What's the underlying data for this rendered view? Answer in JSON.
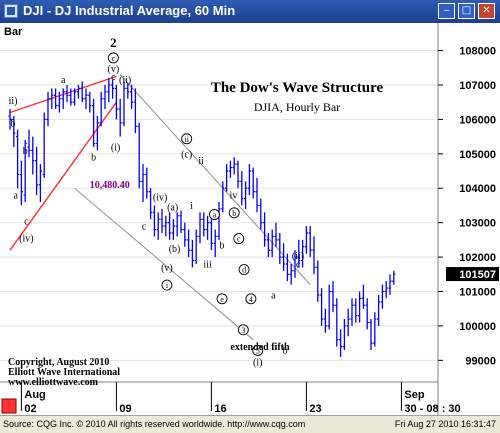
{
  "window": {
    "title": "DJI - DJ Industrial Average, 60 Min",
    "min_glyph": "‒",
    "max_glyph": "□",
    "close_glyph": "✕"
  },
  "status": {
    "copyright": "Source: CQG Inc. © 2010 All rights reserved worldwide.  http://www.cqg.com",
    "datetime": "Fri Aug 27 2010 16:31:47"
  },
  "colors": {
    "bar": "#0000ff",
    "wedge": "#ff3030",
    "channel": "#909090",
    "last_price_bg": "#000000",
    "annotation_value": "#800080"
  },
  "chart_data": {
    "type": "ohlc-bar",
    "symbol": "DJI",
    "interval": "60 Min",
    "corner_label": "Bar",
    "title": "The Dow's Wave Structure",
    "subtitle": "DJIA, Hourly Bar",
    "price_axis": {
      "range": [
        98400,
        108800
      ],
      "ticks": [
        99000,
        100000,
        101000,
        102000,
        103000,
        104000,
        105000,
        106000,
        107000,
        108000
      ],
      "labels": [
        "99000",
        "100000",
        "101000",
        "102000",
        "103000",
        "104000",
        "105000",
        "106000",
        "107000",
        "108000"
      ],
      "last_price": 101507,
      "last_price_label": "101507"
    },
    "time_axis": {
      "months": [
        {
          "label": "Aug",
          "x": 3
        },
        {
          "label": "Sep",
          "x": 103
        }
      ],
      "days": [
        {
          "label": "02",
          "x": 3
        },
        {
          "label": "09",
          "x": 28
        },
        {
          "label": "16",
          "x": 53
        },
        {
          "label": "23",
          "x": 78
        },
        {
          "label": "30 - 08 : 30",
          "x": 103
        }
      ]
    },
    "values": [
      [
        0,
        106100,
        106300,
        105700,
        106000
      ],
      [
        1,
        106000,
        106100,
        105200,
        105600
      ],
      [
        2,
        105500,
        105700,
        104000,
        104400
      ],
      [
        3,
        104400,
        104800,
        103500,
        103900
      ],
      [
        4,
        103800,
        105400,
        103600,
        105300
      ],
      [
        5,
        105200,
        105700,
        104900,
        105100
      ],
      [
        6,
        105100,
        105500,
        104400,
        104800
      ],
      [
        7,
        104800,
        105200,
        103800,
        104100
      ],
      [
        8,
        104100,
        104700,
        103600,
        104500
      ],
      [
        9,
        104400,
        106200,
        104300,
        106000
      ],
      [
        10,
        106000,
        106800,
        105800,
        106600
      ],
      [
        11,
        106600,
        106900,
        106300,
        106700
      ],
      [
        12,
        106700,
        106900,
        106300,
        106400
      ],
      [
        13,
        106400,
        106800,
        106200,
        106600
      ],
      [
        14,
        106600,
        106900,
        106300,
        106800
      ],
      [
        15,
        106800,
        107000,
        106500,
        106700
      ],
      [
        16,
        106700,
        106900,
        106400,
        106500
      ],
      [
        17,
        106500,
        106900,
        106400,
        106800
      ],
      [
        18,
        106800,
        107000,
        106600,
        106900
      ],
      [
        19,
        106900,
        107100,
        106500,
        106600
      ],
      [
        20,
        106600,
        106900,
        106300,
        106700
      ],
      [
        21,
        106700,
        106800,
        106200,
        106400
      ],
      [
        22,
        106400,
        106600,
        105200,
        105300
      ],
      [
        23,
        105300,
        106100,
        105100,
        105900
      ],
      [
        24,
        105900,
        106800,
        105800,
        106600
      ],
      [
        25,
        106600,
        107000,
        106300,
        106800
      ],
      [
        26,
        106800,
        107200,
        106500,
        107000
      ],
      [
        27,
        107000,
        107150,
        106600,
        106900
      ],
      [
        28,
        106900,
        107000,
        106000,
        106300
      ],
      [
        29,
        106300,
        106600,
        105500,
        105900
      ],
      [
        30,
        105900,
        107100,
        105800,
        106900
      ],
      [
        31,
        106900,
        107050,
        106600,
        106800
      ],
      [
        32,
        106800,
        107000,
        106300,
        106500
      ],
      [
        33,
        106500,
        106900,
        105600,
        105800
      ],
      [
        34,
        105800,
        105900,
        104000,
        104200
      ],
      [
        35,
        104200,
        104700,
        103600,
        104400
      ],
      [
        36,
        104400,
        104600,
        103700,
        103900
      ],
      [
        37,
        103900,
        104000,
        103100,
        103300
      ],
      [
        38,
        103300,
        103500,
        102600,
        102800
      ],
      [
        39,
        102800,
        103300,
        102500,
        103100
      ],
      [
        40,
        103100,
        103400,
        102700,
        102900
      ],
      [
        41,
        102900,
        103200,
        102600,
        103000
      ],
      [
        42,
        103000,
        103300,
        102500,
        102700
      ],
      [
        43,
        102700,
        103100,
        102500,
        102900
      ],
      [
        44,
        102900,
        103300,
        102600,
        103200
      ],
      [
        45,
        103200,
        103350,
        102700,
        102800
      ],
      [
        46,
        102800,
        103000,
        102300,
        102500
      ],
      [
        47,
        102500,
        102800,
        102000,
        102200
      ],
      [
        48,
        102200,
        102500,
        101700,
        101900
      ],
      [
        49,
        101900,
        102800,
        101800,
        102600
      ],
      [
        50,
        102600,
        103300,
        102400,
        103100
      ],
      [
        51,
        103100,
        103300,
        102600,
        102800
      ],
      [
        52,
        102800,
        103200,
        102500,
        103000
      ],
      [
        53,
        103000,
        103100,
        102200,
        102400
      ],
      [
        54,
        102400,
        102800,
        102000,
        102600
      ],
      [
        55,
        102600,
        103600,
        102500,
        103400
      ],
      [
        56,
        103400,
        104200,
        103300,
        104000
      ],
      [
        57,
        104000,
        104700,
        103900,
        104500
      ],
      [
        58,
        104500,
        104800,
        104300,
        104600
      ],
      [
        59,
        104600,
        104900,
        104400,
        104700
      ],
      [
        60,
        104700,
        104800,
        104000,
        104200
      ],
      [
        61,
        104200,
        104500,
        103500,
        103700
      ],
      [
        62,
        103700,
        104200,
        103400,
        104000
      ],
      [
        63,
        104000,
        104700,
        103800,
        104500
      ],
      [
        64,
        104500,
        104600,
        103700,
        103900
      ],
      [
        65,
        103900,
        104300,
        103300,
        103500
      ],
      [
        66,
        103500,
        103700,
        102800,
        103000
      ],
      [
        67,
        103000,
        103300,
        102300,
        102500
      ],
      [
        68,
        102500,
        102700,
        102000,
        102200
      ],
      [
        69,
        102200,
        102800,
        102000,
        102600
      ],
      [
        70,
        102600,
        103000,
        102300,
        102500
      ],
      [
        71,
        102500,
        102700,
        101800,
        102000
      ],
      [
        72,
        102000,
        102400,
        101600,
        101800
      ],
      [
        73,
        101800,
        102100,
        101300,
        101500
      ],
      [
        74,
        101500,
        101800,
        101200,
        101600
      ],
      [
        75,
        101600,
        102200,
        101400,
        102000
      ],
      [
        76,
        102000,
        102500,
        101700,
        101900
      ],
      [
        77,
        101900,
        102500,
        101700,
        102300
      ],
      [
        78,
        102300,
        102900,
        102100,
        102700
      ],
      [
        79,
        102700,
        102900,
        102000,
        102200
      ],
      [
        80,
        102200,
        102600,
        101500,
        101700
      ],
      [
        81,
        101700,
        101900,
        100700,
        100900
      ],
      [
        82,
        100900,
        101100,
        100000,
        100200
      ],
      [
        83,
        100200,
        100500,
        99800,
        100000
      ],
      [
        84,
        100000,
        101200,
        99900,
        101000
      ],
      [
        85,
        101000,
        101300,
        100400,
        100600
      ],
      [
        86,
        100600,
        100800,
        99400,
        99600
      ],
      [
        87,
        99600,
        99900,
        99100,
        99400
      ],
      [
        88,
        99400,
        100200,
        99300,
        100000
      ],
      [
        89,
        100000,
        100500,
        99700,
        100200
      ],
      [
        90,
        100200,
        100800,
        100000,
        100600
      ],
      [
        91,
        100600,
        100800,
        100100,
        100300
      ],
      [
        92,
        100300,
        101000,
        100100,
        100800
      ],
      [
        93,
        100800,
        101200,
        100500,
        100600
      ],
      [
        94,
        100600,
        100800,
        99900,
        100100
      ],
      [
        95,
        100100,
        100200,
        99300,
        99500
      ],
      [
        96,
        99500,
        100400,
        99400,
        100200
      ],
      [
        97,
        100200,
        100900,
        100000,
        100700
      ],
      [
        98,
        100700,
        101200,
        100500,
        101000
      ],
      [
        99,
        101000,
        101300,
        100800,
        101100
      ],
      [
        100,
        101100,
        101500,
        100900,
        101300
      ],
      [
        101,
        101300,
        101600,
        101200,
        101507
      ]
    ],
    "wave_labels": [
      {
        "text": "2",
        "x": 27.2,
        "y": 108100,
        "style": "plain-big"
      },
      {
        "text": "c",
        "x": 27.2,
        "y": 107700,
        "style": "circled"
      },
      {
        "text": "(v)",
        "x": 27.2,
        "y": 107380,
        "style": "plain"
      },
      {
        "text": "c",
        "x": 27.2,
        "y": 107150,
        "style": "plain"
      },
      {
        "text": "(ii)",
        "x": 30.3,
        "y": 107050,
        "style": "plain"
      },
      {
        "text": "a",
        "x": 14,
        "y": 107050,
        "style": "plain"
      },
      {
        "text": "ii)",
        "x": 0.8,
        "y": 106450,
        "style": "plain"
      },
      {
        "text": "b",
        "x": 0.8,
        "y": 105800,
        "style": "plain"
      },
      {
        "text": "b",
        "x": 4,
        "y": 105000,
        "style": "plain"
      },
      {
        "text": "a",
        "x": 1.5,
        "y": 103700,
        "style": "plain"
      },
      {
        "text": "c",
        "x": 4.3,
        "y": 102950,
        "style": "plain"
      },
      {
        "text": "(iv)",
        "x": 4.3,
        "y": 102450,
        "style": "plain"
      },
      {
        "text": "b",
        "x": 22,
        "y": 104800,
        "style": "plain"
      },
      {
        "text": "(i)",
        "x": 27.8,
        "y": 105100,
        "style": "plain"
      },
      {
        "text": "10,480.40",
        "x": 21,
        "y": 104000,
        "style": "value"
      },
      {
        "text": "(iv)",
        "x": 39.5,
        "y": 103650,
        "style": "plain"
      },
      {
        "text": "(a)",
        "x": 42.8,
        "y": 103350,
        "style": "plain"
      },
      {
        "text": "c",
        "x": 35.3,
        "y": 102800,
        "style": "plain"
      },
      {
        "text": "(b)",
        "x": 43.3,
        "y": 102150,
        "style": "plain"
      },
      {
        "text": "(v)",
        "x": 41.3,
        "y": 101600,
        "style": "plain"
      },
      {
        "text": "i",
        "x": 41.3,
        "y": 101100,
        "style": "circled"
      },
      {
        "text": "ii",
        "x": 46.5,
        "y": 105350,
        "style": "circled"
      },
      {
        "text": "(c)",
        "x": 46.5,
        "y": 104900,
        "style": "plain"
      },
      {
        "text": "ii",
        "x": 50.3,
        "y": 104700,
        "style": "plain"
      },
      {
        "text": "i",
        "x": 47.8,
        "y": 103400,
        "style": "plain"
      },
      {
        "text": "a",
        "x": 53.8,
        "y": 103150,
        "style": "circled"
      },
      {
        "text": "b",
        "x": 55.8,
        "y": 102250,
        "style": "plain"
      },
      {
        "text": "iv",
        "x": 58.8,
        "y": 103700,
        "style": "plain"
      },
      {
        "text": "b",
        "x": 59,
        "y": 103200,
        "style": "circled"
      },
      {
        "text": "c",
        "x": 60.2,
        "y": 102450,
        "style": "circled"
      },
      {
        "text": "d",
        "x": 61.6,
        "y": 101550,
        "style": "circled"
      },
      {
        "text": "iii",
        "x": 52,
        "y": 101700,
        "style": "plain"
      },
      {
        "text": "e",
        "x": 55.8,
        "y": 100700,
        "style": "circled"
      },
      {
        "text": "4",
        "x": 63.4,
        "y": 100700,
        "style": "circled"
      },
      {
        "text": "3",
        "x": 61.4,
        "y": 99800,
        "style": "circled"
      },
      {
        "text": "5",
        "x": 65.2,
        "y": 99200,
        "style": "circled"
      },
      {
        "text": "(i)",
        "x": 65.2,
        "y": 98850,
        "style": "plain"
      },
      {
        "text": "a",
        "x": 69.3,
        "y": 100800,
        "style": "plain"
      },
      {
        "text": "b",
        "x": 72.4,
        "y": 99200,
        "style": "plain"
      },
      {
        "text": "(ii)",
        "x": 75.8,
        "y": 101950,
        "style": "plain"
      },
      {
        "text": "c",
        "x": 75.8,
        "y": 101700,
        "style": "plain"
      },
      {
        "text": "extended fifth",
        "x": 58,
        "y": 99300,
        "style": "note"
      }
    ],
    "trend_lines": [
      {
        "kind": "wedge",
        "from": [
          0,
          102200
        ],
        "to": [
          28,
          106500
        ]
      },
      {
        "kind": "wedge",
        "from": [
          0,
          106200
        ],
        "to": [
          28,
          107250
        ]
      },
      {
        "kind": "channel",
        "from": [
          29,
          107300
        ],
        "to": [
          79,
          101200
        ]
      },
      {
        "kind": "channel",
        "from": [
          17,
          104000
        ],
        "to": [
          64,
          99600
        ]
      }
    ],
    "copyright_note": [
      "Copyright, August 2010",
      "Elliott Wave International",
      "www.elliottwave.com"
    ]
  }
}
